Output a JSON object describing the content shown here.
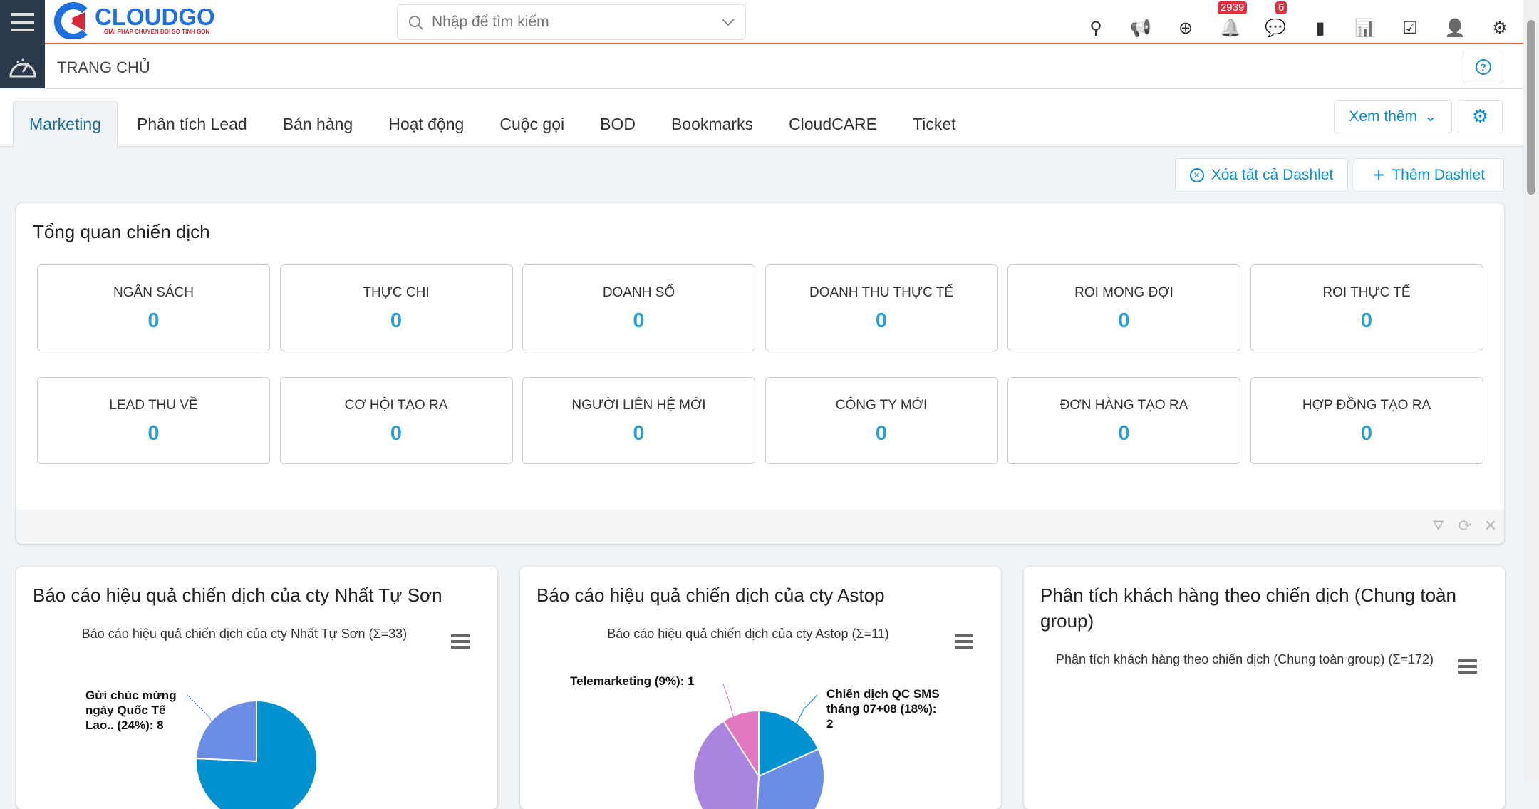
{
  "app": {
    "logo_text": "CLOUDGO",
    "logo_tagline": "GIẢI PHÁP CHUYỂN ĐỔI SỐ TINH GỌN"
  },
  "search": {
    "placeholder": "Nhập để tìm kiếm"
  },
  "header": {
    "notification_count": "2939",
    "message_count": "6",
    "icons": [
      "map-pin-icon",
      "megaphone-icon",
      "plus-circle-icon",
      "bell-icon",
      "chat-icon",
      "calendar-icon",
      "chart-icon",
      "checkbox-icon",
      "user-icon",
      "gear-icon"
    ]
  },
  "breadcrumb": {
    "title": "TRANG CHỦ"
  },
  "tabs": [
    {
      "label": "Marketing",
      "active": true
    },
    {
      "label": "Phân tích Lead"
    },
    {
      "label": "Bán hàng"
    },
    {
      "label": "Hoạt động"
    },
    {
      "label": "Cuộc gọi"
    },
    {
      "label": "BOD"
    },
    {
      "label": "Bookmarks"
    },
    {
      "label": "CloudCARE"
    },
    {
      "label": "Ticket"
    }
  ],
  "toolbar": {
    "more_label": "Xem thêm",
    "clear_label": "Xóa tất cả Dashlet",
    "add_label": "Thêm Dashlet"
  },
  "overview": {
    "title": "Tổng quan chiến dịch",
    "stats": [
      {
        "label": "NGÂN SÁCH",
        "value": "0"
      },
      {
        "label": "THỰC CHI",
        "value": "0"
      },
      {
        "label": "DOANH SỐ",
        "value": "0"
      },
      {
        "label": "DOANH THU THỰC TẾ",
        "value": "0"
      },
      {
        "label": "ROI MONG ĐỢI",
        "value": "0"
      },
      {
        "label": "ROI THỰC TẾ",
        "value": "0"
      },
      {
        "label": "LEAD THU VỀ",
        "value": "0"
      },
      {
        "label": "CƠ HỘI TẠO RA",
        "value": "0"
      },
      {
        "label": "NGƯỜI LIÊN HỆ MỚI",
        "value": "0"
      },
      {
        "label": "CÔNG TY MỚI",
        "value": "0"
      },
      {
        "label": "ĐƠN HÀNG TẠO RA",
        "value": "0"
      },
      {
        "label": "HỢP ĐỒNG TẠO RA",
        "value": "0"
      }
    ]
  },
  "dashlets": [
    {
      "title": "Báo cáo hiệu quả chiến dịch của cty Nhất Tự Sơn",
      "chart_title": "Báo cáo hiệu quả chiến dịch của cty Nhất Tự Sơn (Σ=33)"
    },
    {
      "title": "Báo cáo hiệu quả chiến dịch của cty Astop",
      "chart_title": "Báo cáo hiệu quả chiến dịch của cty Astop (Σ=11)"
    },
    {
      "title": "Phân tích khách hàng theo chiến dịch (Chung toàn group)",
      "chart_title": "Phân tích khách hàng theo chiến dịch (Chung toàn group) (Σ=172)"
    }
  ],
  "chart_data": [
    {
      "type": "pie",
      "title": "Báo cáo hiệu quả chiến dịch của cty Nhất Tự Sơn (Σ=33)",
      "total": 33,
      "slices": [
        {
          "label": "Gửi chúc mừng ngày Quốc Tế Lao.. (24%): 8",
          "value": 8,
          "color": "#6b8de3"
        }
      ],
      "other_color": "#0091d0"
    },
    {
      "type": "pie",
      "title": "Báo cáo hiệu quả chiến dịch của cty Astop (Σ=11)",
      "total": 11,
      "slices": [
        {
          "label": "Chiến dịch QC SMS tháng 07+08 (18%): 2",
          "value": 2,
          "color": "#0091d0"
        },
        {
          "label": "Telemarketing (9%): 1",
          "value": 1,
          "color": "#e377c2"
        }
      ],
      "other_colors": [
        "#6b8de3",
        "#a985e0"
      ]
    },
    {
      "type": "pie",
      "title": "Phân tích khách hàng theo chiến dịch (Chung toàn group) (Σ=172)",
      "total": 172,
      "slices": []
    }
  ]
}
